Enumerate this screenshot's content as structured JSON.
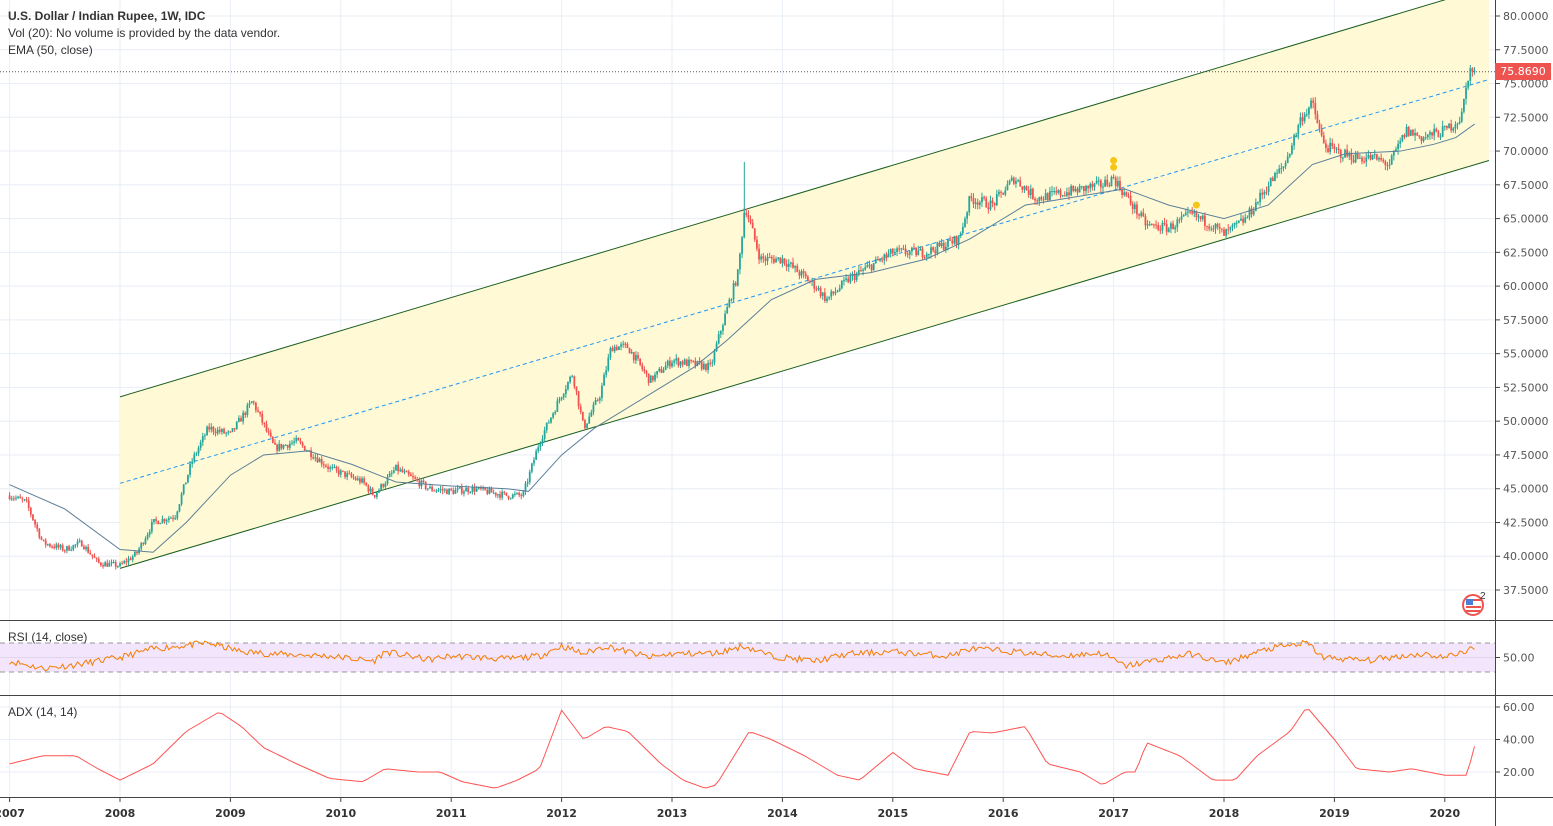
{
  "header": {
    "title": "U.S. Dollar / Indian Rupee, 1W, IDC",
    "volume_note": "Vol (20): No volume is provided by the data vendor.",
    "ema_label": "EMA (50, close)"
  },
  "rsi_label": "RSI (14, close)",
  "adx_label": "ADX (14, 14)",
  "last_price": "75.8690",
  "events_badge": {
    "icon": "us-flag-economic-events-icon",
    "count": "2"
  },
  "colors": {
    "up": "#26a69a",
    "down": "#ef5350",
    "channel_fill": "#fff9d0",
    "channel_line": "#1b5e20",
    "median": "#2196f3",
    "ema": "#5b7f99",
    "rsi": "#f57c00",
    "rsi_band": "#f3e5fc",
    "adx": "#ff5252",
    "price_tag": "#ef5350"
  },
  "chart_data": [
    {
      "type": "candlestick",
      "title": "U.S. Dollar / Indian Rupee, 1W, IDC",
      "x_ticks": [
        "2007",
        "2008",
        "2009",
        "2010",
        "2011",
        "2012",
        "2013",
        "2014",
        "2015",
        "2016",
        "2017",
        "2018",
        "2019",
        "2020"
      ],
      "y_ticks": [
        "37.5000",
        "40.0000",
        "42.5000",
        "45.0000",
        "47.5000",
        "50.0000",
        "52.5000",
        "55.0000",
        "57.5000",
        "60.0000",
        "62.5000",
        "65.0000",
        "67.5000",
        "70.0000",
        "72.5000",
        "75.0000",
        "77.5000",
        "80.0000"
      ],
      "ylim": [
        35.5,
        81.2
      ],
      "xlim": [
        2006.93,
        2020.55
      ],
      "grid": true,
      "close_keypoints": [
        [
          2007.0,
          44.5
        ],
        [
          2007.15,
          44.0
        ],
        [
          2007.3,
          41.0
        ],
        [
          2007.5,
          40.5
        ],
        [
          2007.65,
          41.0
        ],
        [
          2007.8,
          39.5
        ],
        [
          2008.0,
          39.3
        ],
        [
          2008.15,
          40.2
        ],
        [
          2008.3,
          42.5
        ],
        [
          2008.5,
          43.0
        ],
        [
          2008.65,
          47.0
        ],
        [
          2008.8,
          49.5
        ],
        [
          2009.0,
          49.0
        ],
        [
          2009.2,
          51.5
        ],
        [
          2009.4,
          48.0
        ],
        [
          2009.6,
          48.5
        ],
        [
          2009.9,
          46.5
        ],
        [
          2010.2,
          45.5
        ],
        [
          2010.3,
          44.5
        ],
        [
          2010.5,
          46.5
        ],
        [
          2010.8,
          45.0
        ],
        [
          2011.0,
          44.8
        ],
        [
          2011.2,
          45.0
        ],
        [
          2011.5,
          44.5
        ],
        [
          2011.65,
          44.5
        ],
        [
          2011.8,
          48.5
        ],
        [
          2012.0,
          52.0
        ],
        [
          2012.1,
          53.5
        ],
        [
          2012.2,
          49.5
        ],
        [
          2012.35,
          52.0
        ],
        [
          2012.45,
          55.5
        ],
        [
          2012.6,
          55.5
        ],
        [
          2012.8,
          53.0
        ],
        [
          2013.0,
          54.5
        ],
        [
          2013.35,
          54.0
        ],
        [
          2013.45,
          57.0
        ],
        [
          2013.6,
          61.0
        ],
        [
          2013.66,
          66.0
        ],
        [
          2013.8,
          62.0
        ],
        [
          2014.0,
          62.0
        ],
        [
          2014.3,
          60.0
        ],
        [
          2014.4,
          59.0
        ],
        [
          2014.6,
          60.5
        ],
        [
          2014.9,
          62.0
        ],
        [
          2015.0,
          62.5
        ],
        [
          2015.3,
          62.5
        ],
        [
          2015.6,
          63.5
        ],
        [
          2015.7,
          66.5
        ],
        [
          2015.9,
          66.0
        ],
        [
          2016.1,
          68.0
        ],
        [
          2016.3,
          66.5
        ],
        [
          2016.6,
          67.0
        ],
        [
          2016.9,
          67.5
        ],
        [
          2017.0,
          68.0
        ],
        [
          2017.1,
          66.8
        ],
        [
          2017.3,
          64.5
        ],
        [
          2017.5,
          64.3
        ],
        [
          2017.7,
          65.3
        ],
        [
          2017.9,
          64.5
        ],
        [
          2018.0,
          63.8
        ],
        [
          2018.2,
          65.0
        ],
        [
          2018.4,
          67.5
        ],
        [
          2018.55,
          69.0
        ],
        [
          2018.7,
          72.5
        ],
        [
          2018.8,
          73.5
        ],
        [
          2018.9,
          70.5
        ],
        [
          2019.0,
          70.0
        ],
        [
          2019.2,
          69.5
        ],
        [
          2019.35,
          69.5
        ],
        [
          2019.5,
          69.0
        ],
        [
          2019.65,
          71.5
        ],
        [
          2019.8,
          71.0
        ],
        [
          2020.0,
          71.5
        ],
        [
          2020.15,
          72.5
        ],
        [
          2020.22,
          76.0
        ],
        [
          2020.27,
          75.869
        ]
      ],
      "ema_50": [
        [
          2007.0,
          45.3
        ],
        [
          2007.5,
          43.5
        ],
        [
          2008.0,
          40.5
        ],
        [
          2008.3,
          40.3
        ],
        [
          2008.6,
          42.5
        ],
        [
          2009.0,
          46.0
        ],
        [
          2009.3,
          47.5
        ],
        [
          2009.7,
          47.8
        ],
        [
          2010.1,
          46.8
        ],
        [
          2010.5,
          45.5
        ],
        [
          2011.0,
          45.2
        ],
        [
          2011.5,
          45.0
        ],
        [
          2011.7,
          44.8
        ],
        [
          2012.0,
          47.5
        ],
        [
          2012.3,
          49.5
        ],
        [
          2012.8,
          52.0
        ],
        [
          2013.2,
          54.0
        ],
        [
          2013.5,
          56.0
        ],
        [
          2013.9,
          59.0
        ],
        [
          2014.3,
          60.5
        ],
        [
          2014.8,
          61.0
        ],
        [
          2015.3,
          62.0
        ],
        [
          2015.7,
          63.5
        ],
        [
          2016.2,
          66.0
        ],
        [
          2016.8,
          66.8
        ],
        [
          2017.1,
          67.2
        ],
        [
          2017.5,
          66.0
        ],
        [
          2018.0,
          65.0
        ],
        [
          2018.4,
          66.0
        ],
        [
          2018.8,
          69.0
        ],
        [
          2019.1,
          69.8
        ],
        [
          2019.6,
          70.0
        ],
        [
          2019.9,
          70.5
        ],
        [
          2020.1,
          71.0
        ],
        [
          2020.27,
          72.0
        ]
      ],
      "parallel_channel": {
        "upper": [
          [
            2008.0,
            51.8
          ],
          [
            2020.0,
            81.2
          ]
        ],
        "median": [
          [
            2008.0,
            45.4
          ],
          [
            2020.4,
            75.3
          ]
        ],
        "lower": [
          [
            2008.0,
            39.1
          ],
          [
            2020.4,
            69.3
          ]
        ]
      },
      "event_markers": [
        [
          2017.0,
          69.3
        ],
        [
          2017.0,
          68.8
        ],
        [
          2017.75,
          66.0
        ]
      ]
    },
    {
      "type": "line",
      "title": "RSI (14, close)",
      "y_ticks": [
        "50.00"
      ],
      "bands": [
        30,
        70
      ],
      "values": [
        [
          2007.0,
          45
        ],
        [
          2007.3,
          35
        ],
        [
          2007.6,
          40
        ],
        [
          2007.8,
          45
        ],
        [
          2008.0,
          50
        ],
        [
          2008.3,
          62
        ],
        [
          2008.8,
          70
        ],
        [
          2009.1,
          58
        ],
        [
          2009.4,
          55
        ],
        [
          2009.9,
          52
        ],
        [
          2010.3,
          45
        ],
        [
          2010.4,
          58
        ],
        [
          2010.8,
          47
        ],
        [
          2011.0,
          52
        ],
        [
          2011.5,
          48
        ],
        [
          2011.8,
          52
        ],
        [
          2012.0,
          66
        ],
        [
          2012.2,
          55
        ],
        [
          2012.4,
          66
        ],
        [
          2012.8,
          50
        ],
        [
          2013.0,
          55
        ],
        [
          2013.4,
          56
        ],
        [
          2013.65,
          66
        ],
        [
          2013.9,
          52
        ],
        [
          2014.3,
          45
        ],
        [
          2014.6,
          55
        ],
        [
          2015.0,
          58
        ],
        [
          2015.5,
          52
        ],
        [
          2015.7,
          62
        ],
        [
          2016.1,
          58
        ],
        [
          2016.5,
          52
        ],
        [
          2016.9,
          56
        ],
        [
          2017.1,
          38
        ],
        [
          2017.3,
          44
        ],
        [
          2017.7,
          55
        ],
        [
          2018.0,
          42
        ],
        [
          2018.4,
          62
        ],
        [
          2018.75,
          70
        ],
        [
          2018.9,
          50
        ],
        [
          2019.3,
          46
        ],
        [
          2019.6,
          52
        ],
        [
          2019.8,
          55
        ],
        [
          2020.0,
          50
        ],
        [
          2020.2,
          60
        ],
        [
          2020.27,
          62
        ]
      ]
    },
    {
      "type": "line",
      "title": "ADX (14, 14)",
      "y_ticks": [
        "20.00",
        "40.00",
        "60.00"
      ],
      "values": [
        [
          2007.0,
          25
        ],
        [
          2007.3,
          30
        ],
        [
          2007.6,
          30
        ],
        [
          2007.8,
          22
        ],
        [
          2008.0,
          15
        ],
        [
          2008.3,
          25
        ],
        [
          2008.6,
          45
        ],
        [
          2008.9,
          57
        ],
        [
          2009.1,
          48
        ],
        [
          2009.3,
          35
        ],
        [
          2009.6,
          25
        ],
        [
          2009.9,
          16
        ],
        [
          2010.2,
          14
        ],
        [
          2010.4,
          22
        ],
        [
          2010.7,
          20
        ],
        [
          2010.9,
          20
        ],
        [
          2011.1,
          14
        ],
        [
          2011.4,
          10
        ],
        [
          2011.6,
          15
        ],
        [
          2011.8,
          22
        ],
        [
          2012.0,
          58
        ],
        [
          2012.2,
          40
        ],
        [
          2012.4,
          48
        ],
        [
          2012.6,
          45
        ],
        [
          2012.9,
          25
        ],
        [
          2013.1,
          15
        ],
        [
          2013.3,
          10
        ],
        [
          2013.4,
          12
        ],
        [
          2013.7,
          45
        ],
        [
          2013.9,
          40
        ],
        [
          2014.2,
          30
        ],
        [
          2014.5,
          18
        ],
        [
          2014.7,
          15
        ],
        [
          2015.0,
          32
        ],
        [
          2015.2,
          22
        ],
        [
          2015.5,
          18
        ],
        [
          2015.7,
          45
        ],
        [
          2015.9,
          44
        ],
        [
          2016.2,
          48
        ],
        [
          2016.4,
          25
        ],
        [
          2016.7,
          20
        ],
        [
          2016.9,
          12
        ],
        [
          2017.1,
          20
        ],
        [
          2017.2,
          20
        ],
        [
          2017.3,
          38
        ],
        [
          2017.6,
          30
        ],
        [
          2017.9,
          15
        ],
        [
          2018.1,
          15
        ],
        [
          2018.3,
          30
        ],
        [
          2018.6,
          45
        ],
        [
          2018.75,
          60
        ],
        [
          2019.0,
          40
        ],
        [
          2019.2,
          22
        ],
        [
          2019.5,
          20
        ],
        [
          2019.7,
          22
        ],
        [
          2020.0,
          18
        ],
        [
          2020.2,
          18
        ],
        [
          2020.27,
          36
        ]
      ]
    }
  ]
}
